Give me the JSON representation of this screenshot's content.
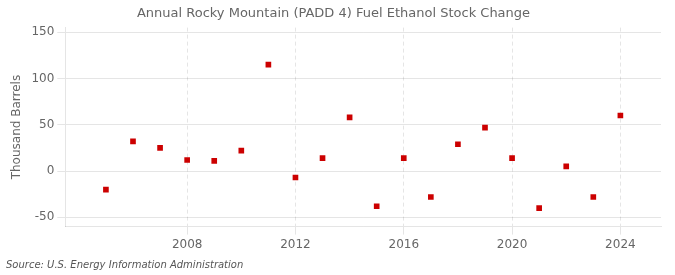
{
  "chart_data": {
    "type": "scatter",
    "title": "Annual Rocky Mountain (PADD 4) Fuel Ethanol Stock Change",
    "ylabel": "Thousand Barrels",
    "annotations": [
      "Source: U.S. Energy Information Administration"
    ],
    "x": [
      2005,
      2006,
      2007,
      2008,
      2009,
      2010,
      2011,
      2012,
      2013,
      2014,
      2015,
      2016,
      2017,
      2018,
      2019,
      2020,
      2021,
      2022,
      2023,
      2024
    ],
    "values": [
      -20,
      32,
      25,
      12,
      11,
      22,
      115,
      -7,
      14,
      58,
      -38,
      14,
      -28,
      29,
      47,
      14,
      -40,
      5,
      -28,
      60
    ],
    "color": "#cc0000",
    "marker": "square",
    "xlim": [
      2003.5,
      2025.5
    ],
    "ylim": [
      -60,
      155
    ],
    "xticks": [
      2008,
      2012,
      2016,
      2020,
      2024
    ],
    "yticks": [
      -50,
      0,
      50,
      100,
      150
    ],
    "grid": true
  }
}
